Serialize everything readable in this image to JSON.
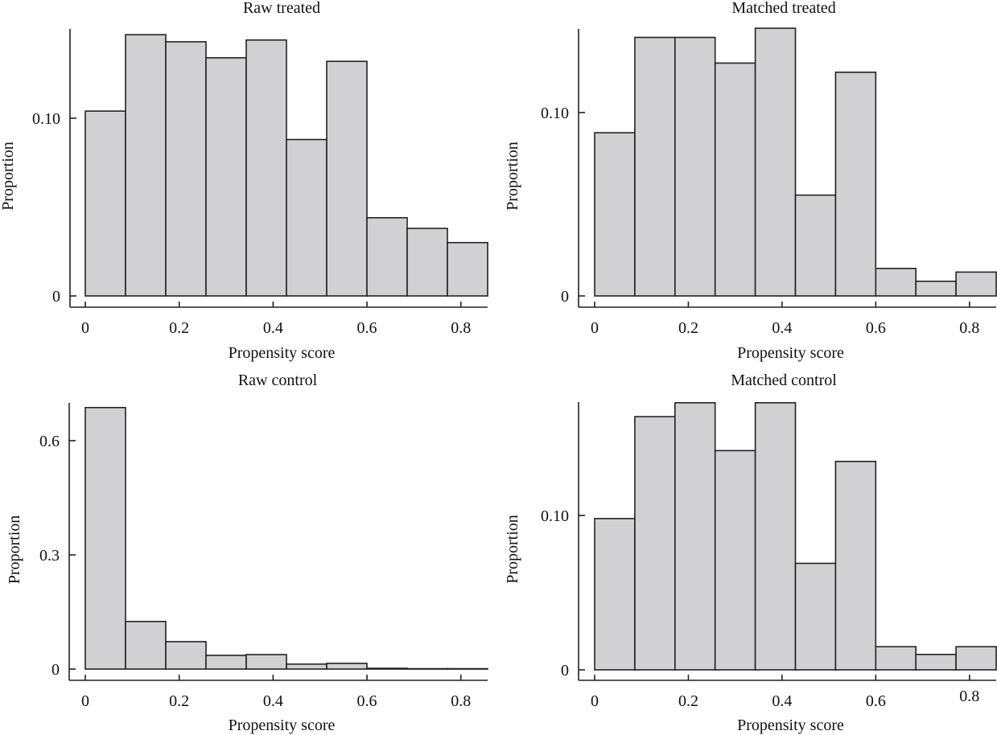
{
  "figure": {
    "panel_count": 4
  },
  "chart_data": [
    {
      "type": "bar",
      "title": "Raw treated",
      "xlabel": "Propensity score",
      "ylabel": "Proportion",
      "bin_width": 0.0857,
      "bin_start": 0,
      "values": [
        0.104,
        0.147,
        0.143,
        0.134,
        0.144,
        0.088,
        0.132,
        0.044,
        0.038,
        0.03
      ],
      "xticks": [
        0,
        0.2,
        0.4,
        0.6,
        0.8
      ],
      "xtick_labels": [
        "0",
        "0.2",
        "0.4",
        "0.6",
        "0.8"
      ],
      "yticks": [
        0,
        0.1
      ],
      "ytick_labels": [
        "0",
        "0.10"
      ],
      "xlim": [
        0,
        0.857
      ],
      "ylim": [
        0,
        0.15
      ]
    },
    {
      "type": "bar",
      "title": "Matched treated",
      "xlabel": "Propensity score",
      "ylabel": "Proportion",
      "bin_width": 0.0857,
      "bin_start": 0,
      "values": [
        0.089,
        0.141,
        0.141,
        0.127,
        0.146,
        0.055,
        0.122,
        0.015,
        0.008,
        0.013
      ],
      "xticks": [
        0,
        0.2,
        0.4,
        0.6,
        0.8
      ],
      "xtick_labels": [
        "0",
        "0.2",
        "0.4",
        "0.6",
        "0.8"
      ],
      "yticks": [
        0,
        0.1
      ],
      "ytick_labels": [
        "0",
        "0.10"
      ],
      "xlim": [
        0,
        0.857
      ],
      "ylim": [
        0,
        0.146
      ]
    },
    {
      "type": "bar",
      "title": "Raw control",
      "xlabel": "Propensity score",
      "ylabel": "Proportion",
      "bin_width": 0.0857,
      "bin_start": 0,
      "values": [
        0.687,
        0.125,
        0.072,
        0.036,
        0.038,
        0.013,
        0.015,
        0.002,
        0.001,
        0.001
      ],
      "xticks": [
        0,
        0.2,
        0.4,
        0.6,
        0.8
      ],
      "xtick_labels": [
        "0",
        "0.2",
        "0.4",
        "0.6",
        "0.8"
      ],
      "yticks": [
        0,
        0.3,
        0.6
      ],
      "ytick_labels": [
        "0",
        "0.3",
        "0.6"
      ],
      "xlim": [
        0,
        0.857
      ],
      "ylim": [
        0,
        0.7
      ]
    },
    {
      "type": "bar",
      "title": "Matched control",
      "xlabel": "Propensity score",
      "ylabel": "Proportion",
      "bin_width": 0.0857,
      "bin_start": 0,
      "values": [
        0.098,
        0.164,
        0.173,
        0.142,
        0.173,
        0.069,
        0.135,
        0.015,
        0.01,
        0.015
      ],
      "xticks": [
        0,
        0.2,
        0.4,
        0.6,
        0.8
      ],
      "xtick_labels": [
        "0",
        "0.2",
        "0.4",
        "0.6",
        "0.8"
      ],
      "yticks": [
        0,
        0.1
      ],
      "ytick_labels": [
        "0",
        "0.10"
      ],
      "xlim": [
        0,
        0.857
      ],
      "ylim": [
        0,
        0.173
      ]
    }
  ]
}
